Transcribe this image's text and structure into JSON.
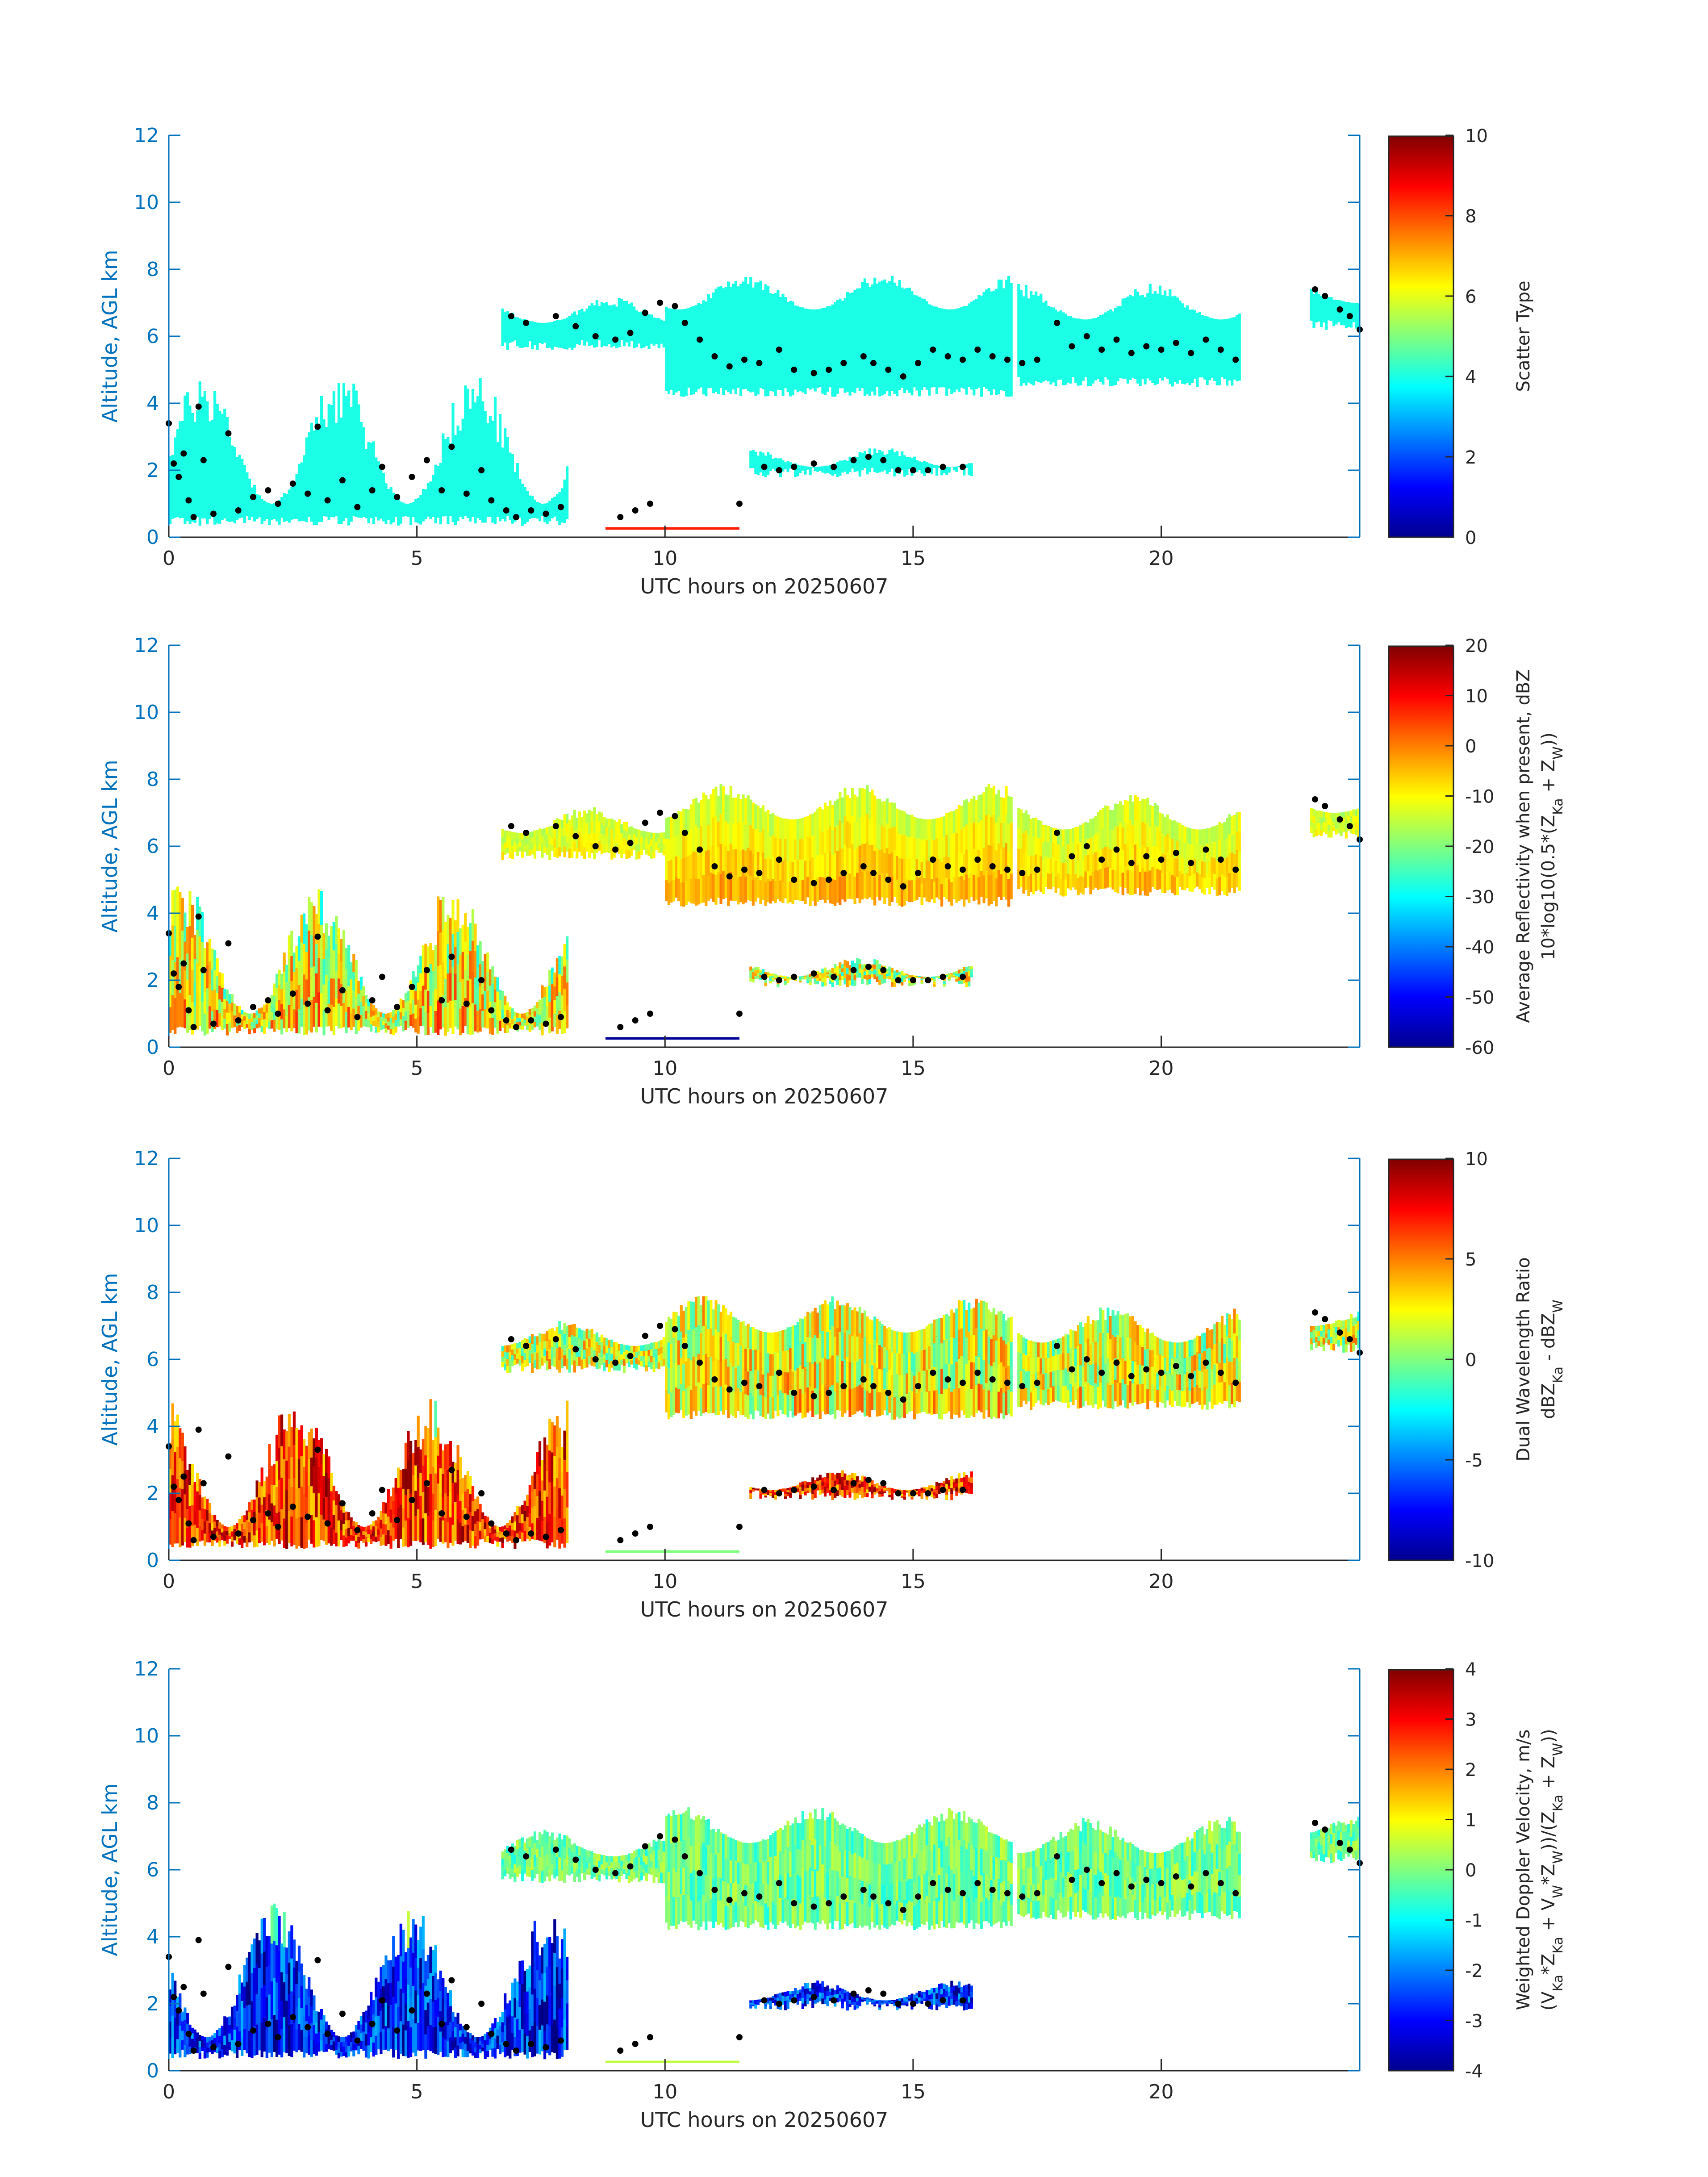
{
  "figure": {
    "background": "#ffffff",
    "axis_color": "#0072BD",
    "text_color": "#262626"
  },
  "colormap": "jet",
  "chart_data": [
    {
      "type": "heatmap",
      "title": "",
      "xlabel": "UTC hours on 20250607",
      "ylabel": "Altitude, AGL km",
      "xlim": [
        0,
        24
      ],
      "ylim": [
        0,
        12
      ],
      "xticks": [
        "0",
        "5",
        "10",
        "15",
        "20"
      ],
      "xtick_values": [
        0,
        5,
        10,
        15,
        20
      ],
      "yticks": [
        "0",
        "2",
        "4",
        "6",
        "8",
        "10",
        "12"
      ],
      "ytick_values": [
        0,
        2,
        4,
        6,
        8,
        10,
        12
      ],
      "colorbar": {
        "label_lines": [
          "Scatter Type"
        ],
        "clim": [
          0,
          10
        ],
        "ticks": [
          "0",
          "2",
          "4",
          "6",
          "8",
          "10"
        ],
        "tick_values": [
          0,
          2,
          4,
          6,
          8,
          10
        ]
      },
      "field": "scatter"
    },
    {
      "type": "heatmap",
      "title": "",
      "xlabel": "UTC hours on 20250607",
      "ylabel": "Altitude, AGL km",
      "xlim": [
        0,
        24
      ],
      "ylim": [
        0,
        12
      ],
      "xticks": [
        "0",
        "5",
        "10",
        "15",
        "20"
      ],
      "xtick_values": [
        0,
        5,
        10,
        15,
        20
      ],
      "yticks": [
        "0",
        "2",
        "4",
        "6",
        "8",
        "10",
        "12"
      ],
      "ytick_values": [
        0,
        2,
        4,
        6,
        8,
        10,
        12
      ],
      "colorbar": {
        "label_lines": [
          "Average Reflectivity when present, dBZ",
          "10*log10(0.5*(Z_Ka + Z_W))"
        ],
        "clim": [
          -60,
          20
        ],
        "ticks": [
          "-60",
          "-50",
          "-40",
          "-30",
          "-20",
          "-10",
          "0",
          "10",
          "20"
        ],
        "tick_values": [
          -60,
          -50,
          -40,
          -30,
          -20,
          -10,
          0,
          10,
          20
        ]
      },
      "field": "reflectivity"
    },
    {
      "type": "heatmap",
      "title": "",
      "xlabel": "UTC hours on 20250607",
      "ylabel": "Altitude, AGL km",
      "xlim": [
        0,
        24
      ],
      "ylim": [
        0,
        12
      ],
      "xticks": [
        "0",
        "5",
        "10",
        "15",
        "20"
      ],
      "xtick_values": [
        0,
        5,
        10,
        15,
        20
      ],
      "yticks": [
        "0",
        "2",
        "4",
        "6",
        "8",
        "10",
        "12"
      ],
      "ytick_values": [
        0,
        2,
        4,
        6,
        8,
        10,
        12
      ],
      "colorbar": {
        "label_lines": [
          "Dual Wavelength Ratio",
          "dBZ_Ka - dBZ_W"
        ],
        "clim": [
          -10,
          10
        ],
        "ticks": [
          "-10",
          "-5",
          "0",
          "5",
          "10"
        ],
        "tick_values": [
          -10,
          -5,
          0,
          5,
          10
        ]
      },
      "field": "dwr"
    },
    {
      "type": "heatmap",
      "title": "",
      "xlabel": "UTC hours on 20250607",
      "ylabel": "Altitude, AGL km",
      "xlim": [
        0,
        24
      ],
      "ylim": [
        0,
        12
      ],
      "xticks": [
        "0",
        "5",
        "10",
        "15",
        "20"
      ],
      "xtick_values": [
        0,
        5,
        10,
        15,
        20
      ],
      "yticks": [
        "0",
        "2",
        "4",
        "6",
        "8",
        "10",
        "12"
      ],
      "ytick_values": [
        0,
        2,
        4,
        6,
        8,
        10,
        12
      ],
      "colorbar": {
        "label_lines": [
          "Weighted Doppler Velocity, m/s",
          "(V_Ka*Z_Ka + V_W*Z_W))/(Z_Ka + Z_W))"
        ],
        "clim": [
          -4,
          4
        ],
        "ticks": [
          "-4",
          "-3",
          "-2",
          "-1",
          "0",
          "1",
          "2",
          "3",
          "4"
        ],
        "tick_values": [
          -4,
          -3,
          -2,
          -1,
          0,
          1,
          2,
          3,
          4
        ]
      },
      "field": "velocity"
    }
  ],
  "echo_regions": [
    {
      "x0": 0.0,
      "x1": 8.0,
      "bottom": 0.35,
      "top_min": 1.0,
      "top_max": 5.0
    },
    {
      "x0": 6.7,
      "x1": 10.5,
      "bottom": 5.6,
      "top_min": 6.4,
      "top_max": 7.2
    },
    {
      "x0": 10.0,
      "x1": 17.0,
      "bottom": 4.2,
      "top_min": 6.8,
      "top_max": 7.9
    },
    {
      "x0": 17.1,
      "x1": 21.6,
      "bottom": 4.5,
      "top_min": 6.5,
      "top_max": 7.6
    },
    {
      "x0": 23.0,
      "x1": 24.0,
      "bottom": 6.2,
      "top_min": 7.0,
      "top_max": 7.6
    },
    {
      "x0": 11.7,
      "x1": 16.2,
      "bottom": 1.8,
      "top_min": 2.1,
      "top_max": 2.7
    }
  ],
  "surface_echo": {
    "x0": 8.8,
    "x1": 11.5,
    "altitude": 0.2
  },
  "cloud_top_markers": [
    [
      0.0,
      3.4
    ],
    [
      0.1,
      2.2
    ],
    [
      0.2,
      1.8
    ],
    [
      0.3,
      2.5
    ],
    [
      0.4,
      1.1
    ],
    [
      0.5,
      0.6
    ],
    [
      0.6,
      3.9
    ],
    [
      0.7,
      2.3
    ],
    [
      0.9,
      0.7
    ],
    [
      1.2,
      3.1
    ],
    [
      1.4,
      0.8
    ],
    [
      1.7,
      1.2
    ],
    [
      2.0,
      1.4
    ],
    [
      2.2,
      1.0
    ],
    [
      2.5,
      1.6
    ],
    [
      2.8,
      1.3
    ],
    [
      3.0,
      3.3
    ],
    [
      3.2,
      1.1
    ],
    [
      3.5,
      1.7
    ],
    [
      3.8,
      0.9
    ],
    [
      4.1,
      1.4
    ],
    [
      4.3,
      2.1
    ],
    [
      4.6,
      1.2
    ],
    [
      4.9,
      1.8
    ],
    [
      5.2,
      2.3
    ],
    [
      5.5,
      1.4
    ],
    [
      5.7,
      2.7
    ],
    [
      6.0,
      1.3
    ],
    [
      6.3,
      2.0
    ],
    [
      6.5,
      1.1
    ],
    [
      6.8,
      0.8
    ],
    [
      7.0,
      0.6
    ],
    [
      7.3,
      0.8
    ],
    [
      7.6,
      0.7
    ],
    [
      7.9,
      0.9
    ],
    [
      6.9,
      6.6
    ],
    [
      7.2,
      6.4
    ],
    [
      7.8,
      6.6
    ],
    [
      8.2,
      6.3
    ],
    [
      8.6,
      6.0
    ],
    [
      9.0,
      5.9
    ],
    [
      9.3,
      6.1
    ],
    [
      9.6,
      6.7
    ],
    [
      9.9,
      7.0
    ],
    [
      10.2,
      6.9
    ],
    [
      10.4,
      6.4
    ],
    [
      10.7,
      5.9
    ],
    [
      11.0,
      5.4
    ],
    [
      11.3,
      5.1
    ],
    [
      11.6,
      5.3
    ],
    [
      11.9,
      5.2
    ],
    [
      12.3,
      5.6
    ],
    [
      12.6,
      5.0
    ],
    [
      13.0,
      4.9
    ],
    [
      13.3,
      5.0
    ],
    [
      13.6,
      5.2
    ],
    [
      14.0,
      5.4
    ],
    [
      14.2,
      5.2
    ],
    [
      14.5,
      5.0
    ],
    [
      14.8,
      4.8
    ],
    [
      15.1,
      5.2
    ],
    [
      15.4,
      5.6
    ],
    [
      15.7,
      5.4
    ],
    [
      16.0,
      5.3
    ],
    [
      16.3,
      5.6
    ],
    [
      16.6,
      5.4
    ],
    [
      16.9,
      5.3
    ],
    [
      17.2,
      5.2
    ],
    [
      17.5,
      5.3
    ],
    [
      17.9,
      6.4
    ],
    [
      18.2,
      5.7
    ],
    [
      18.5,
      6.0
    ],
    [
      18.8,
      5.6
    ],
    [
      19.1,
      5.9
    ],
    [
      19.4,
      5.5
    ],
    [
      19.7,
      5.7
    ],
    [
      20.0,
      5.6
    ],
    [
      20.3,
      5.8
    ],
    [
      20.6,
      5.5
    ],
    [
      20.9,
      5.9
    ],
    [
      21.2,
      5.6
    ],
    [
      21.5,
      5.3
    ],
    [
      23.1,
      7.4
    ],
    [
      23.3,
      7.2
    ],
    [
      23.6,
      6.8
    ],
    [
      23.8,
      6.6
    ],
    [
      24.0,
      6.2
    ],
    [
      9.1,
      0.6
    ],
    [
      9.4,
      0.8
    ],
    [
      9.7,
      1.0
    ],
    [
      11.5,
      1.0
    ],
    [
      12.0,
      2.1
    ],
    [
      12.3,
      2.0
    ],
    [
      12.6,
      2.1
    ],
    [
      13.0,
      2.2
    ],
    [
      13.4,
      2.1
    ],
    [
      13.8,
      2.3
    ],
    [
      14.1,
      2.4
    ],
    [
      14.4,
      2.3
    ],
    [
      14.7,
      2.0
    ],
    [
      15.0,
      2.0
    ],
    [
      15.3,
      2.0
    ],
    [
      15.6,
      2.1
    ],
    [
      16.0,
      2.1
    ]
  ]
}
